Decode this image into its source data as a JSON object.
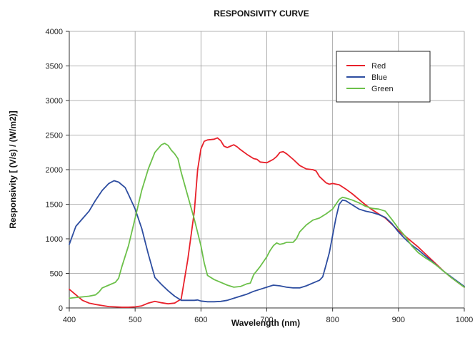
{
  "chart_data": {
    "type": "line",
    "title": "RESPONSIVITY CURVE",
    "xlabel": "Wavelength (nm)",
    "ylabel": "Responsivity [ (V/s) / (W/m2)]",
    "xlim": [
      400,
      1000
    ],
    "ylim": [
      0,
      4000
    ],
    "xticks": [
      400,
      500,
      600,
      700,
      800,
      900,
      1000
    ],
    "yticks": [
      0,
      500,
      1000,
      1500,
      2000,
      2500,
      3000,
      3500,
      4000
    ],
    "grid": true,
    "legend_position": "top-right",
    "series": [
      {
        "name": "Red",
        "color": "#e8202a",
        "points": [
          [
            400,
            270
          ],
          [
            410,
            190
          ],
          [
            420,
            110
          ],
          [
            430,
            70
          ],
          [
            440,
            50
          ],
          [
            450,
            35
          ],
          [
            460,
            20
          ],
          [
            470,
            15
          ],
          [
            480,
            10
          ],
          [
            490,
            10
          ],
          [
            500,
            15
          ],
          [
            510,
            30
          ],
          [
            520,
            70
          ],
          [
            530,
            95
          ],
          [
            540,
            75
          ],
          [
            550,
            60
          ],
          [
            560,
            70
          ],
          [
            570,
            130
          ],
          [
            580,
            700
          ],
          [
            590,
            1400
          ],
          [
            595,
            2000
          ],
          [
            600,
            2300
          ],
          [
            605,
            2410
          ],
          [
            610,
            2430
          ],
          [
            620,
            2440
          ],
          [
            625,
            2460
          ],
          [
            630,
            2420
          ],
          [
            635,
            2340
          ],
          [
            640,
            2320
          ],
          [
            645,
            2340
          ],
          [
            650,
            2360
          ],
          [
            655,
            2330
          ],
          [
            660,
            2290
          ],
          [
            670,
            2220
          ],
          [
            680,
            2160
          ],
          [
            685,
            2150
          ],
          [
            690,
            2110
          ],
          [
            700,
            2100
          ],
          [
            710,
            2150
          ],
          [
            715,
            2190
          ],
          [
            720,
            2250
          ],
          [
            725,
            2260
          ],
          [
            730,
            2230
          ],
          [
            740,
            2150
          ],
          [
            750,
            2060
          ],
          [
            760,
            2010
          ],
          [
            770,
            2000
          ],
          [
            775,
            1980
          ],
          [
            780,
            1900
          ],
          [
            790,
            1810
          ],
          [
            795,
            1790
          ],
          [
            800,
            1800
          ],
          [
            810,
            1780
          ],
          [
            820,
            1720
          ],
          [
            830,
            1650
          ],
          [
            840,
            1570
          ],
          [
            850,
            1490
          ],
          [
            860,
            1420
          ],
          [
            870,
            1360
          ],
          [
            880,
            1300
          ],
          [
            890,
            1210
          ],
          [
            900,
            1120
          ],
          [
            910,
            1040
          ],
          [
            920,
            960
          ],
          [
            930,
            880
          ],
          [
            940,
            790
          ],
          [
            950,
            700
          ],
          [
            960,
            610
          ],
          [
            970,
            520
          ],
          [
            980,
            440
          ],
          [
            990,
            370
          ],
          [
            1000,
            300
          ]
        ]
      },
      {
        "name": "Blue",
        "color": "#2d4da0",
        "points": [
          [
            400,
            920
          ],
          [
            410,
            1180
          ],
          [
            420,
            1290
          ],
          [
            430,
            1400
          ],
          [
            440,
            1560
          ],
          [
            450,
            1700
          ],
          [
            460,
            1800
          ],
          [
            468,
            1840
          ],
          [
            475,
            1820
          ],
          [
            485,
            1740
          ],
          [
            490,
            1640
          ],
          [
            500,
            1430
          ],
          [
            510,
            1150
          ],
          [
            520,
            780
          ],
          [
            530,
            440
          ],
          [
            540,
            340
          ],
          [
            550,
            250
          ],
          [
            560,
            170
          ],
          [
            570,
            110
          ],
          [
            580,
            110
          ],
          [
            590,
            110
          ],
          [
            595,
            115
          ],
          [
            600,
            100
          ],
          [
            610,
            90
          ],
          [
            620,
            90
          ],
          [
            630,
            95
          ],
          [
            640,
            110
          ],
          [
            650,
            140
          ],
          [
            660,
            170
          ],
          [
            670,
            200
          ],
          [
            680,
            240
          ],
          [
            690,
            270
          ],
          [
            700,
            300
          ],
          [
            710,
            330
          ],
          [
            720,
            320
          ],
          [
            730,
            300
          ],
          [
            740,
            290
          ],
          [
            750,
            290
          ],
          [
            760,
            320
          ],
          [
            770,
            360
          ],
          [
            780,
            400
          ],
          [
            785,
            450
          ],
          [
            790,
            620
          ],
          [
            795,
            800
          ],
          [
            800,
            1050
          ],
          [
            805,
            1300
          ],
          [
            810,
            1500
          ],
          [
            815,
            1560
          ],
          [
            820,
            1550
          ],
          [
            830,
            1490
          ],
          [
            840,
            1430
          ],
          [
            850,
            1400
          ],
          [
            860,
            1380
          ],
          [
            870,
            1350
          ],
          [
            880,
            1310
          ],
          [
            890,
            1220
          ],
          [
            900,
            1100
          ],
          [
            910,
            1000
          ],
          [
            920,
            910
          ],
          [
            930,
            840
          ],
          [
            940,
            760
          ],
          [
            950,
            680
          ],
          [
            960,
            600
          ],
          [
            970,
            520
          ],
          [
            980,
            450
          ],
          [
            990,
            380
          ],
          [
            1000,
            310
          ]
        ]
      },
      {
        "name": "Green",
        "color": "#6cc04a",
        "points": [
          [
            400,
            140
          ],
          [
            410,
            150
          ],
          [
            420,
            160
          ],
          [
            430,
            170
          ],
          [
            440,
            190
          ],
          [
            445,
            230
          ],
          [
            450,
            290
          ],
          [
            460,
            330
          ],
          [
            470,
            370
          ],
          [
            475,
            430
          ],
          [
            480,
            600
          ],
          [
            490,
            900
          ],
          [
            500,
            1300
          ],
          [
            510,
            1700
          ],
          [
            520,
            2010
          ],
          [
            530,
            2250
          ],
          [
            540,
            2360
          ],
          [
            545,
            2380
          ],
          [
            550,
            2350
          ],
          [
            555,
            2280
          ],
          [
            560,
            2230
          ],
          [
            565,
            2160
          ],
          [
            570,
            1960
          ],
          [
            580,
            1620
          ],
          [
            590,
            1280
          ],
          [
            600,
            900
          ],
          [
            605,
            650
          ],
          [
            610,
            470
          ],
          [
            620,
            410
          ],
          [
            630,
            370
          ],
          [
            640,
            330
          ],
          [
            650,
            300
          ],
          [
            660,
            310
          ],
          [
            670,
            350
          ],
          [
            675,
            360
          ],
          [
            680,
            480
          ],
          [
            690,
            600
          ],
          [
            700,
            740
          ],
          [
            705,
            830
          ],
          [
            710,
            900
          ],
          [
            715,
            940
          ],
          [
            720,
            920
          ],
          [
            725,
            930
          ],
          [
            730,
            950
          ],
          [
            740,
            950
          ],
          [
            745,
            1000
          ],
          [
            750,
            1100
          ],
          [
            760,
            1200
          ],
          [
            770,
            1270
          ],
          [
            780,
            1300
          ],
          [
            790,
            1360
          ],
          [
            800,
            1430
          ],
          [
            810,
            1570
          ],
          [
            815,
            1600
          ],
          [
            820,
            1590
          ],
          [
            830,
            1560
          ],
          [
            840,
            1520
          ],
          [
            850,
            1470
          ],
          [
            860,
            1440
          ],
          [
            870,
            1430
          ],
          [
            880,
            1400
          ],
          [
            890,
            1280
          ],
          [
            900,
            1150
          ],
          [
            910,
            1040
          ],
          [
            920,
            900
          ],
          [
            930,
            800
          ],
          [
            940,
            730
          ],
          [
            950,
            670
          ],
          [
            960,
            600
          ],
          [
            970,
            520
          ],
          [
            980,
            440
          ],
          [
            990,
            370
          ],
          [
            1000,
            300
          ]
        ]
      }
    ]
  }
}
